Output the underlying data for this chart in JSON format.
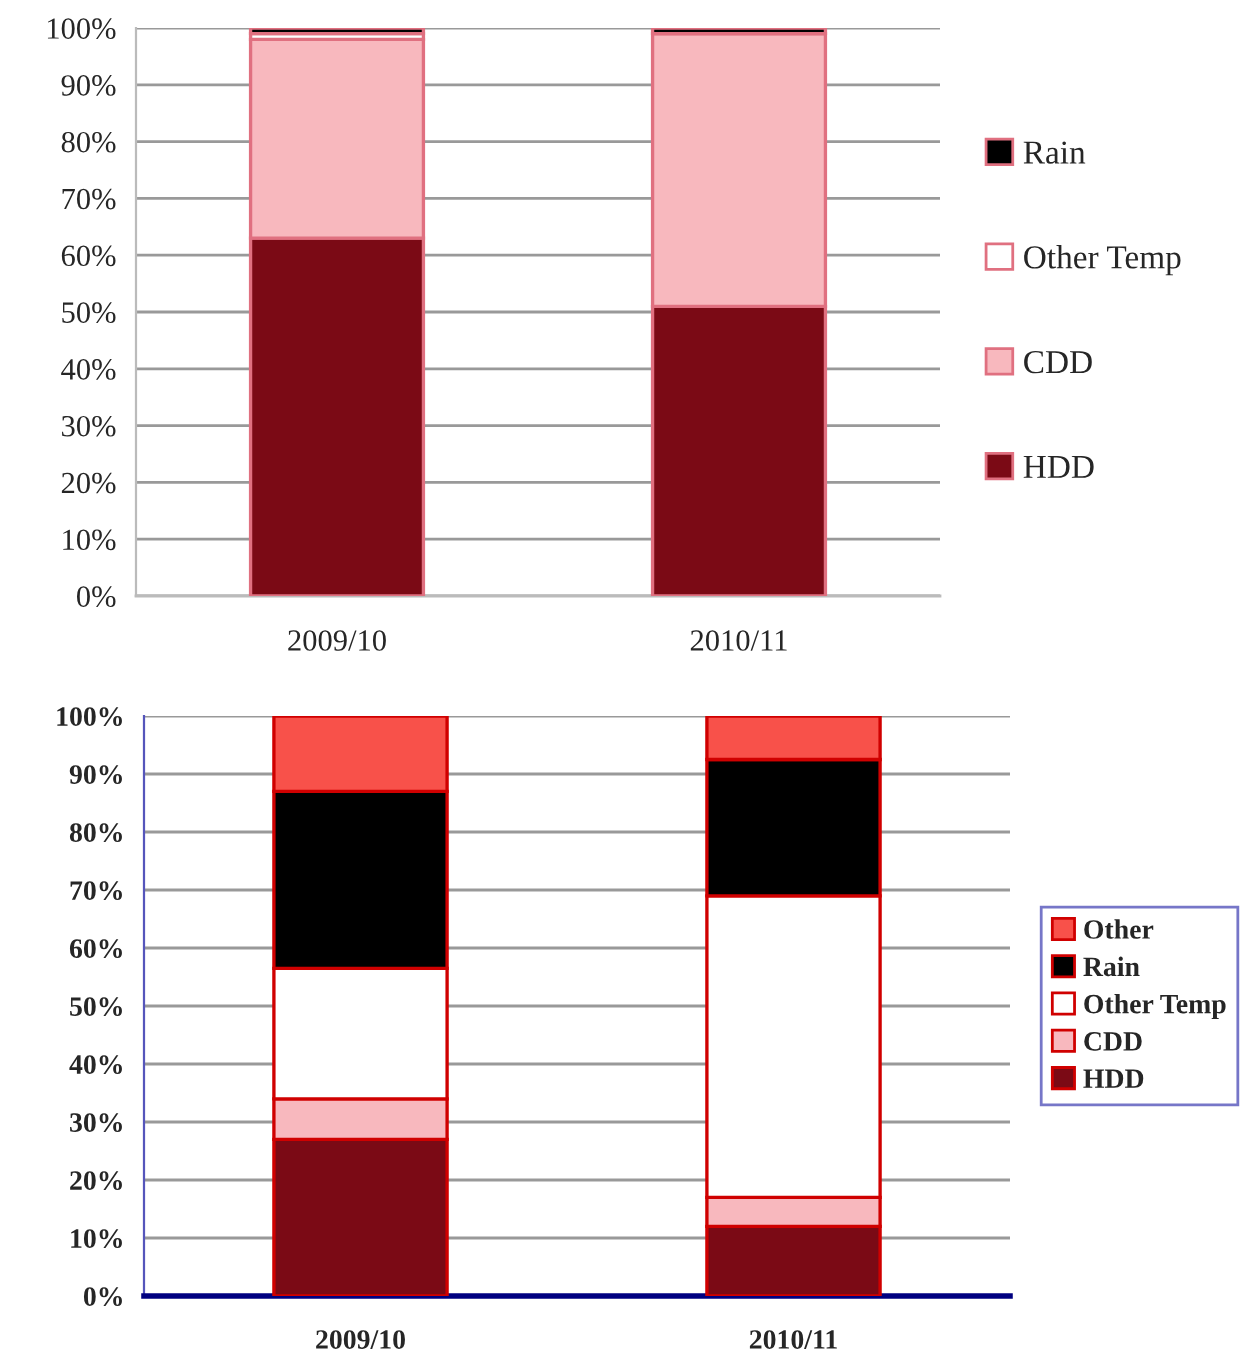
{
  "chart_data": [
    {
      "type": "bar",
      "stacked": true,
      "categories": [
        "2009/10",
        "2010/11"
      ],
      "ylim": [
        0,
        100
      ],
      "yticks": [
        {
          "value": 0,
          "label": "0%"
        },
        {
          "value": 10,
          "label": "10%"
        },
        {
          "value": 20,
          "label": "20%"
        },
        {
          "value": 30,
          "label": "30%"
        },
        {
          "value": 40,
          "label": "40%"
        },
        {
          "value": 50,
          "label": "50%"
        },
        {
          "value": 60,
          "label": "60%"
        },
        {
          "value": 70,
          "label": "70%"
        },
        {
          "value": 80,
          "label": "80%"
        },
        {
          "value": 90,
          "label": "90%"
        },
        {
          "value": 100,
          "label": "100%"
        }
      ],
      "grid": "y",
      "legend": "right",
      "series": [
        {
          "name": "HDD",
          "color": "#7b0a15",
          "values": [
            63,
            51
          ]
        },
        {
          "name": "CDD",
          "color": "#f8b8be",
          "values": [
            35,
            48
          ]
        },
        {
          "name": "Other Temp",
          "color": "#ffffff",
          "values": [
            1,
            0
          ]
        },
        {
          "name": "Rain",
          "color": "#000000",
          "values": [
            1,
            1
          ]
        }
      ]
    },
    {
      "type": "bar",
      "stacked": true,
      "categories": [
        "2009/10",
        "2010/11"
      ],
      "ylim": [
        0,
        100
      ],
      "yticks": [
        {
          "value": 0,
          "label": "0%"
        },
        {
          "value": 10,
          "label": "10%"
        },
        {
          "value": 20,
          "label": "20%"
        },
        {
          "value": 30,
          "label": "30%"
        },
        {
          "value": 40,
          "label": "40%"
        },
        {
          "value": 50,
          "label": "50%"
        },
        {
          "value": 60,
          "label": "60%"
        },
        {
          "value": 70,
          "label": "70%"
        },
        {
          "value": 80,
          "label": "80%"
        },
        {
          "value": 90,
          "label": "90%"
        },
        {
          "value": 100,
          "label": "100%"
        }
      ],
      "grid": "y",
      "legend": "right",
      "series": [
        {
          "name": "HDD",
          "color": "#7b0a15",
          "values": [
            27,
            12
          ]
        },
        {
          "name": "CDD",
          "color": "#f8b8be",
          "values": [
            7,
            5
          ]
        },
        {
          "name": "Other Temp",
          "color": "#ffffff",
          "values": [
            22.5,
            52
          ]
        },
        {
          "name": "Rain",
          "color": "#000000",
          "values": [
            30.5,
            23.5
          ]
        },
        {
          "name": "Other",
          "color": "#f8514a",
          "values": [
            13,
            7.5
          ]
        }
      ]
    }
  ]
}
